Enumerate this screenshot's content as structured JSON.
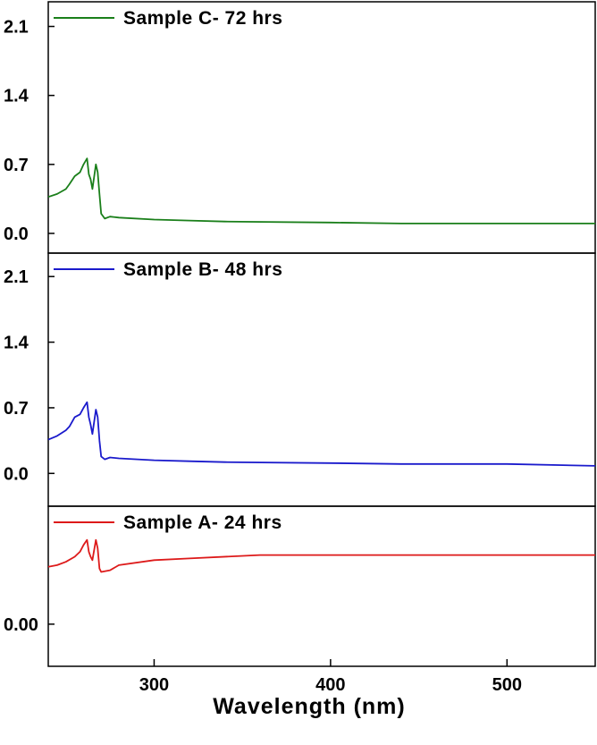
{
  "chart_data": {
    "type": "line",
    "xlabel": "Wavelength (nm)",
    "xlim": [
      240,
      550
    ],
    "xticks": [
      300,
      400,
      500
    ],
    "grid": false,
    "legend_placement": "top-left",
    "panels": [
      {
        "series": [
          {
            "name": "Sample C- 72 hrs",
            "color": "#1a7f1a",
            "x": [
              240,
              245,
              250,
              252,
              255,
              258,
              260,
              262,
              263,
              264,
              265,
              267,
              268,
              269,
              270,
              272,
              275,
              280,
              300,
              320,
              340,
              400,
              440,
              500,
              550
            ],
            "y": [
              0.37,
              0.4,
              0.45,
              0.5,
              0.58,
              0.62,
              0.7,
              0.76,
              0.6,
              0.55,
              0.45,
              0.7,
              0.62,
              0.4,
              0.2,
              0.15,
              0.17,
              0.16,
              0.14,
              0.13,
              0.12,
              0.11,
              0.1,
              0.1,
              0.1
            ]
          }
        ],
        "ylim": [
          -0.2,
          2.35
        ],
        "yticks": [
          "2.1",
          "1.4",
          "0.7",
          "0.0"
        ],
        "ytick_values": [
          2.1,
          1.4,
          0.7,
          0.0
        ]
      },
      {
        "series": [
          {
            "name": "Sample B- 48 hrs",
            "color": "#1a1acc",
            "x": [
              240,
              245,
              250,
              252,
              255,
              258,
              260,
              262,
              263,
              264,
              265,
              267,
              268,
              269,
              270,
              272,
              275,
              280,
              300,
              320,
              340,
              400,
              440,
              500,
              550
            ],
            "y": [
              0.36,
              0.4,
              0.46,
              0.5,
              0.6,
              0.63,
              0.7,
              0.76,
              0.6,
              0.52,
              0.42,
              0.68,
              0.6,
              0.35,
              0.18,
              0.15,
              0.17,
              0.16,
              0.14,
              0.13,
              0.12,
              0.11,
              0.1,
              0.1,
              0.08
            ]
          }
        ],
        "ylim": [
          -0.35,
          2.35
        ],
        "yticks": [
          "2.1",
          "1.4",
          "0.7",
          "0.0"
        ],
        "ytick_values": [
          2.1,
          1.4,
          0.7,
          0.0
        ]
      },
      {
        "series": [
          {
            "name": "Sample A- 24 hrs",
            "color": "#dd1a1a",
            "x": [
              240,
              245,
              250,
              255,
              258,
              260,
              262,
              263,
              264,
              265,
              267,
              268,
              269,
              270,
              275,
              280,
              300,
              320,
              360,
              400,
              500,
              550
            ],
            "y": [
              0.34,
              0.35,
              0.37,
              0.4,
              0.43,
              0.47,
              0.5,
              0.43,
              0.4,
              0.38,
              0.5,
              0.45,
              0.33,
              0.31,
              0.32,
              0.35,
              0.38,
              0.39,
              0.41,
              0.41,
              0.41,
              0.41
            ]
          }
        ],
        "ylim": [
          -0.25,
          0.7
        ],
        "yticks": [
          "0.00"
        ],
        "ytick_values": [
          0.0
        ]
      }
    ]
  }
}
